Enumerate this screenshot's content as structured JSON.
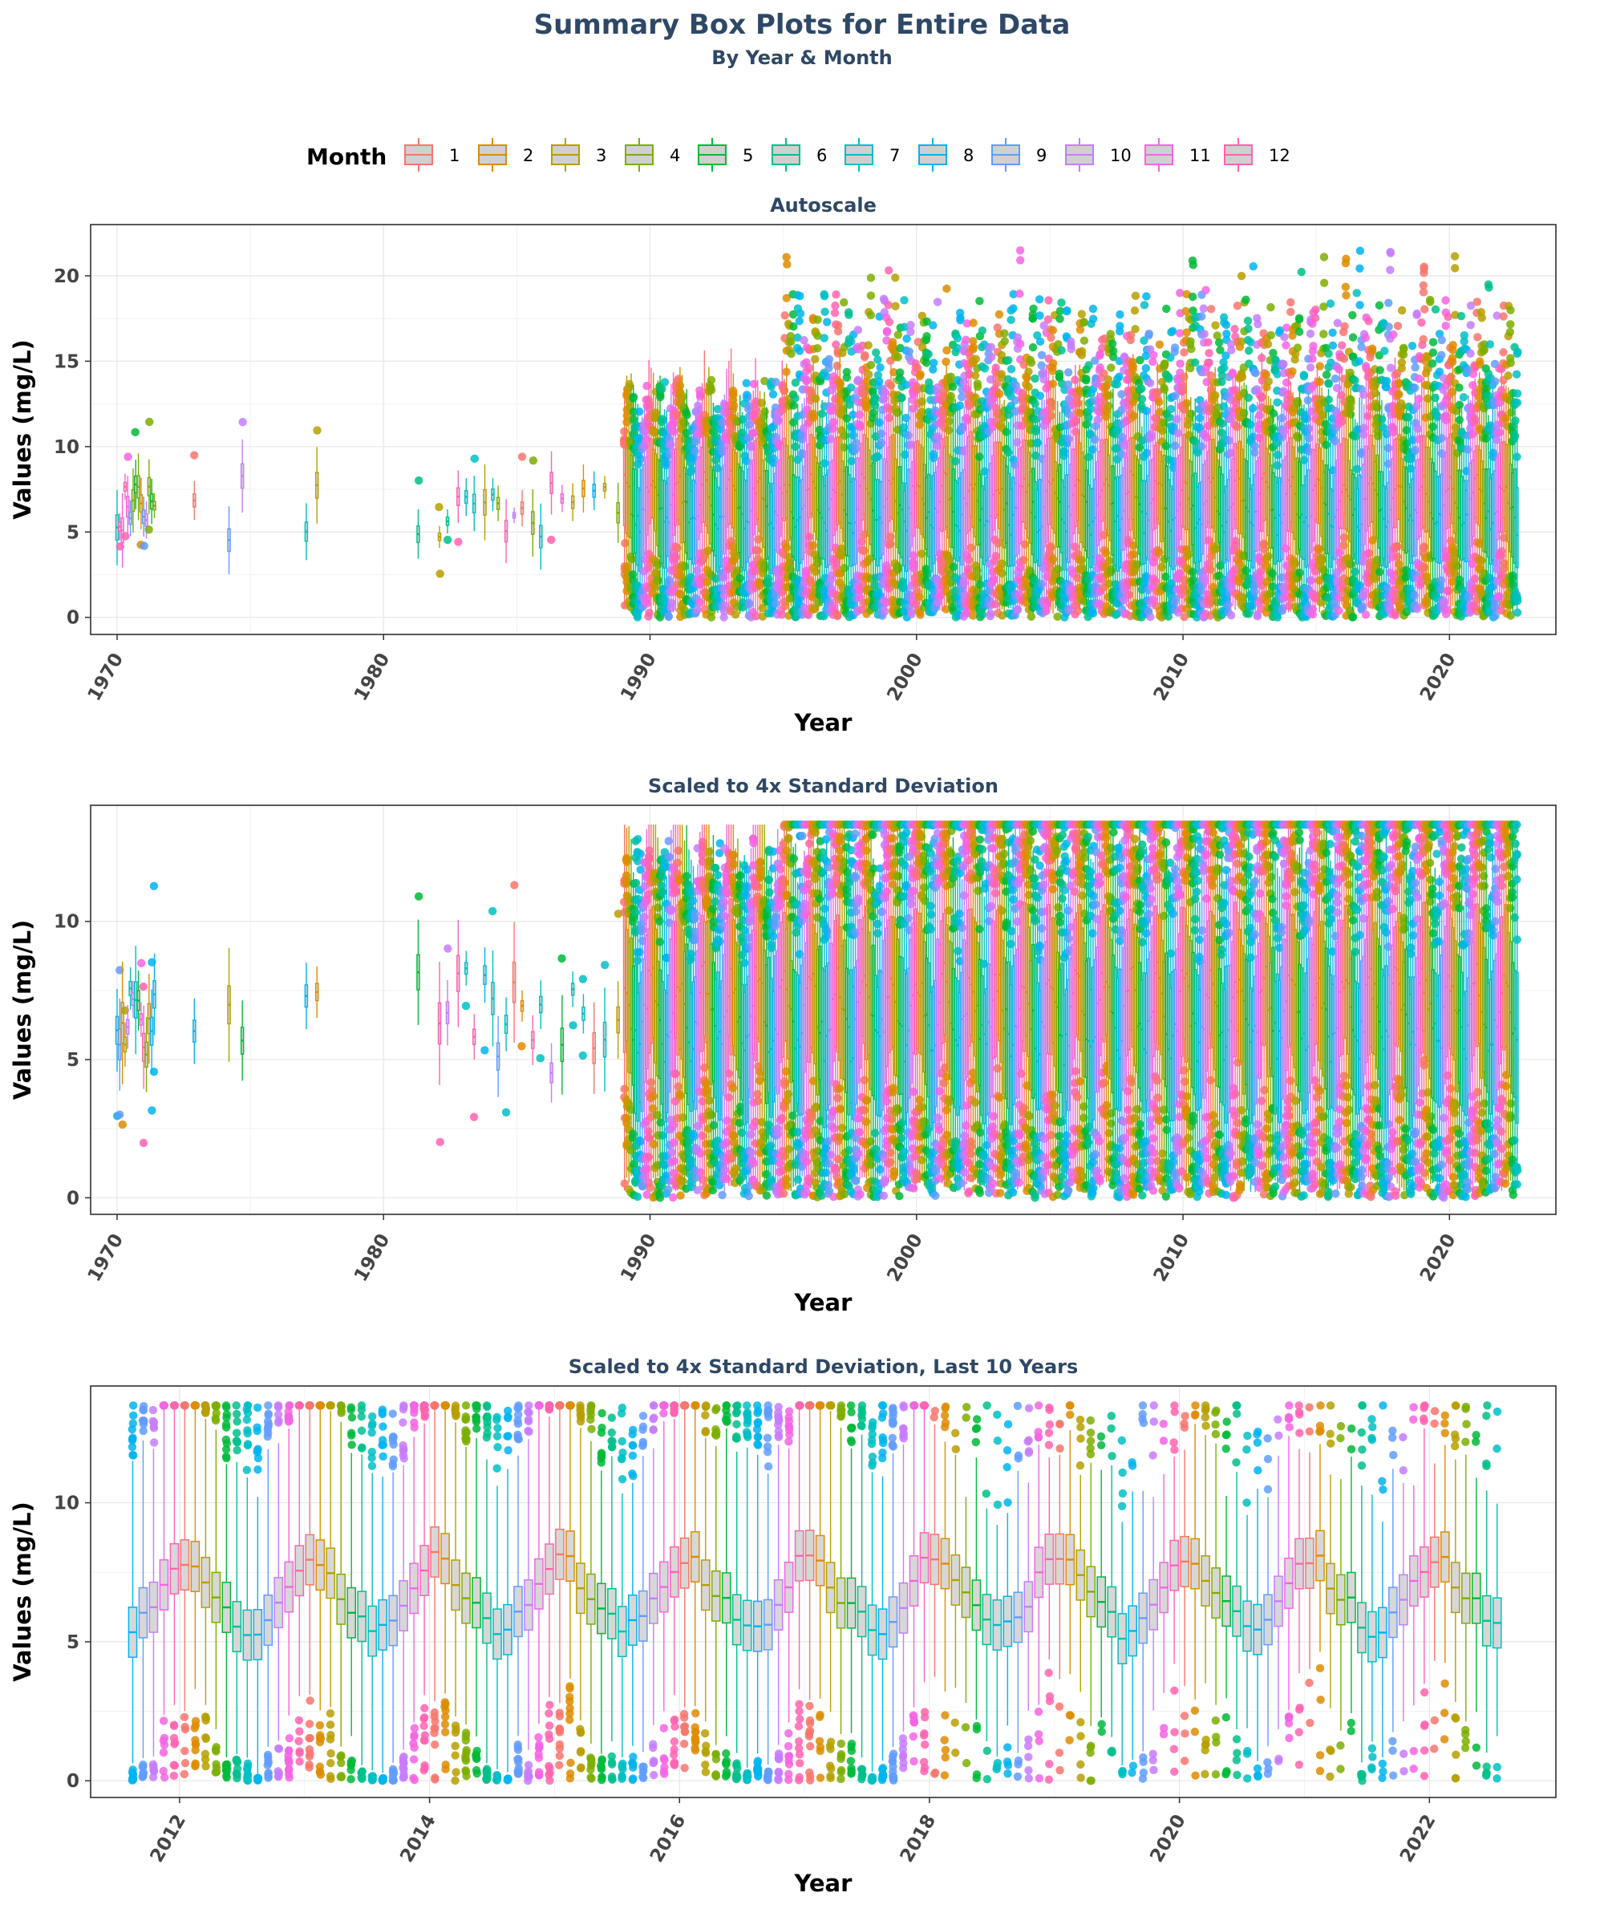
{
  "title": "Summary Box Plots for Entire Data",
  "subtitle": "By Year & Month",
  "legend": {
    "title": "Month",
    "items": [
      "1",
      "2",
      "3",
      "4",
      "5",
      "6",
      "7",
      "8",
      "9",
      "10",
      "11",
      "12"
    ],
    "colors": [
      "#F8766D",
      "#DE8C00",
      "#B79F00",
      "#7CAE00",
      "#00BA38",
      "#00C08B",
      "#00BFC4",
      "#00B4F0",
      "#619CFF",
      "#C77CFF",
      "#F564E3",
      "#FF64B0"
    ]
  },
  "chart_data": [
    {
      "type": "box",
      "panel_title": "Autoscale",
      "xlabel": "Year",
      "ylabel": "Values (mg/L)",
      "xlim": [
        1970,
        2023
      ],
      "ylim": [
        0,
        22
      ],
      "x_ticks": [
        "1970",
        "1980",
        "1990",
        "2000",
        "2010",
        "2020"
      ],
      "y_ticks": [
        "0",
        "5",
        "10",
        "15",
        "20"
      ],
      "grid": true,
      "data_summary": {
        "sparse_years": [
          1970,
          1971,
          1973,
          1974,
          1975,
          1977,
          1981,
          1982,
          1983,
          1984,
          1985,
          1986,
          1987,
          1988
        ],
        "dense_years": [
          1989,
          2022
        ],
        "median_range": [
          4,
          9
        ],
        "max_outlier": 21.9,
        "min_value": 0
      }
    },
    {
      "type": "box",
      "panel_title": "Scaled to 4x Standard Deviation",
      "xlabel": "Year",
      "ylabel": "Values (mg/L)",
      "xlim": [
        1970,
        2023
      ],
      "ylim": [
        0,
        13.5
      ],
      "x_ticks": [
        "1970",
        "1980",
        "1990",
        "2000",
        "2010",
        "2020"
      ],
      "y_ticks": [
        "0",
        "5",
        "10"
      ],
      "grid": true,
      "data_summary": {
        "cap": 13.5,
        "median_range": [
          4,
          9
        ],
        "min_value": 0
      }
    },
    {
      "type": "box",
      "panel_title": "Scaled to 4x Standard Deviation, Last 10 Years",
      "xlabel": "Year",
      "ylabel": "Values (mg/L)",
      "xlim": [
        2011.5,
        2022.8
      ],
      "ylim": [
        0,
        13.5
      ],
      "x_ticks": [
        "2012",
        "2014",
        "2016",
        "2018",
        "2020",
        "2022"
      ],
      "y_ticks": [
        "0",
        "5",
        "10"
      ],
      "grid": true,
      "monthly_medians_by_year": {
        "months": [
          1,
          2,
          3,
          4,
          5,
          6,
          7,
          8,
          9,
          10,
          11,
          12
        ],
        "typical_median": [
          8.0,
          7.8,
          7.2,
          6.6,
          6.3,
          5.8,
          5.4,
          5.5,
          5.9,
          6.5,
          7.2,
          7.8
        ],
        "typical_q1": [
          7.1,
          6.9,
          6.3,
          5.7,
          5.4,
          4.9,
          4.5,
          4.6,
          5.0,
          5.6,
          6.3,
          6.9
        ],
        "typical_q3": [
          8.9,
          8.7,
          8.1,
          7.5,
          7.2,
          6.7,
          6.3,
          6.4,
          6.8,
          7.4,
          8.1,
          8.7
        ]
      }
    }
  ]
}
